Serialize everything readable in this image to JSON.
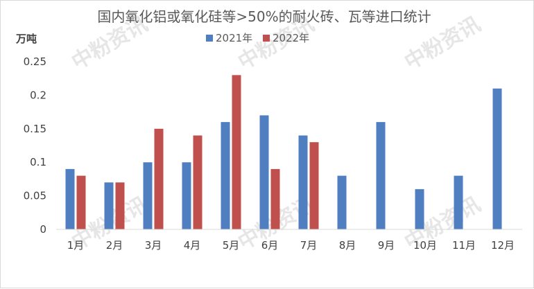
{
  "chart_data": {
    "type": "bar",
    "title": "国内氧化铝或氧化硅等>50%的耐火砖、瓦等进口统计",
    "ylabel": "万吨",
    "xlabel": "",
    "categories": [
      "1月",
      "2月",
      "3月",
      "4月",
      "5月",
      "6月",
      "7月",
      "8月",
      "9月",
      "10月",
      "11月",
      "12月"
    ],
    "series": [
      {
        "name": "2021年",
        "color": "#4f7ec1",
        "values": [
          0.09,
          0.07,
          0.1,
          0.1,
          0.16,
          0.17,
          0.14,
          0.08,
          0.16,
          0.06,
          0.08,
          0.21
        ]
      },
      {
        "name": "2022年",
        "color": "#c0504d",
        "values": [
          0.08,
          0.07,
          0.15,
          0.14,
          0.23,
          0.09,
          0.13,
          null,
          null,
          null,
          null,
          null
        ]
      }
    ],
    "ylim": [
      0,
      0.25
    ],
    "yticks": [
      "0",
      "0.05",
      "0.1",
      "0.15",
      "0.2",
      "0.25"
    ],
    "grid": false,
    "legend_position": "top"
  },
  "watermark": "中粉资讯"
}
